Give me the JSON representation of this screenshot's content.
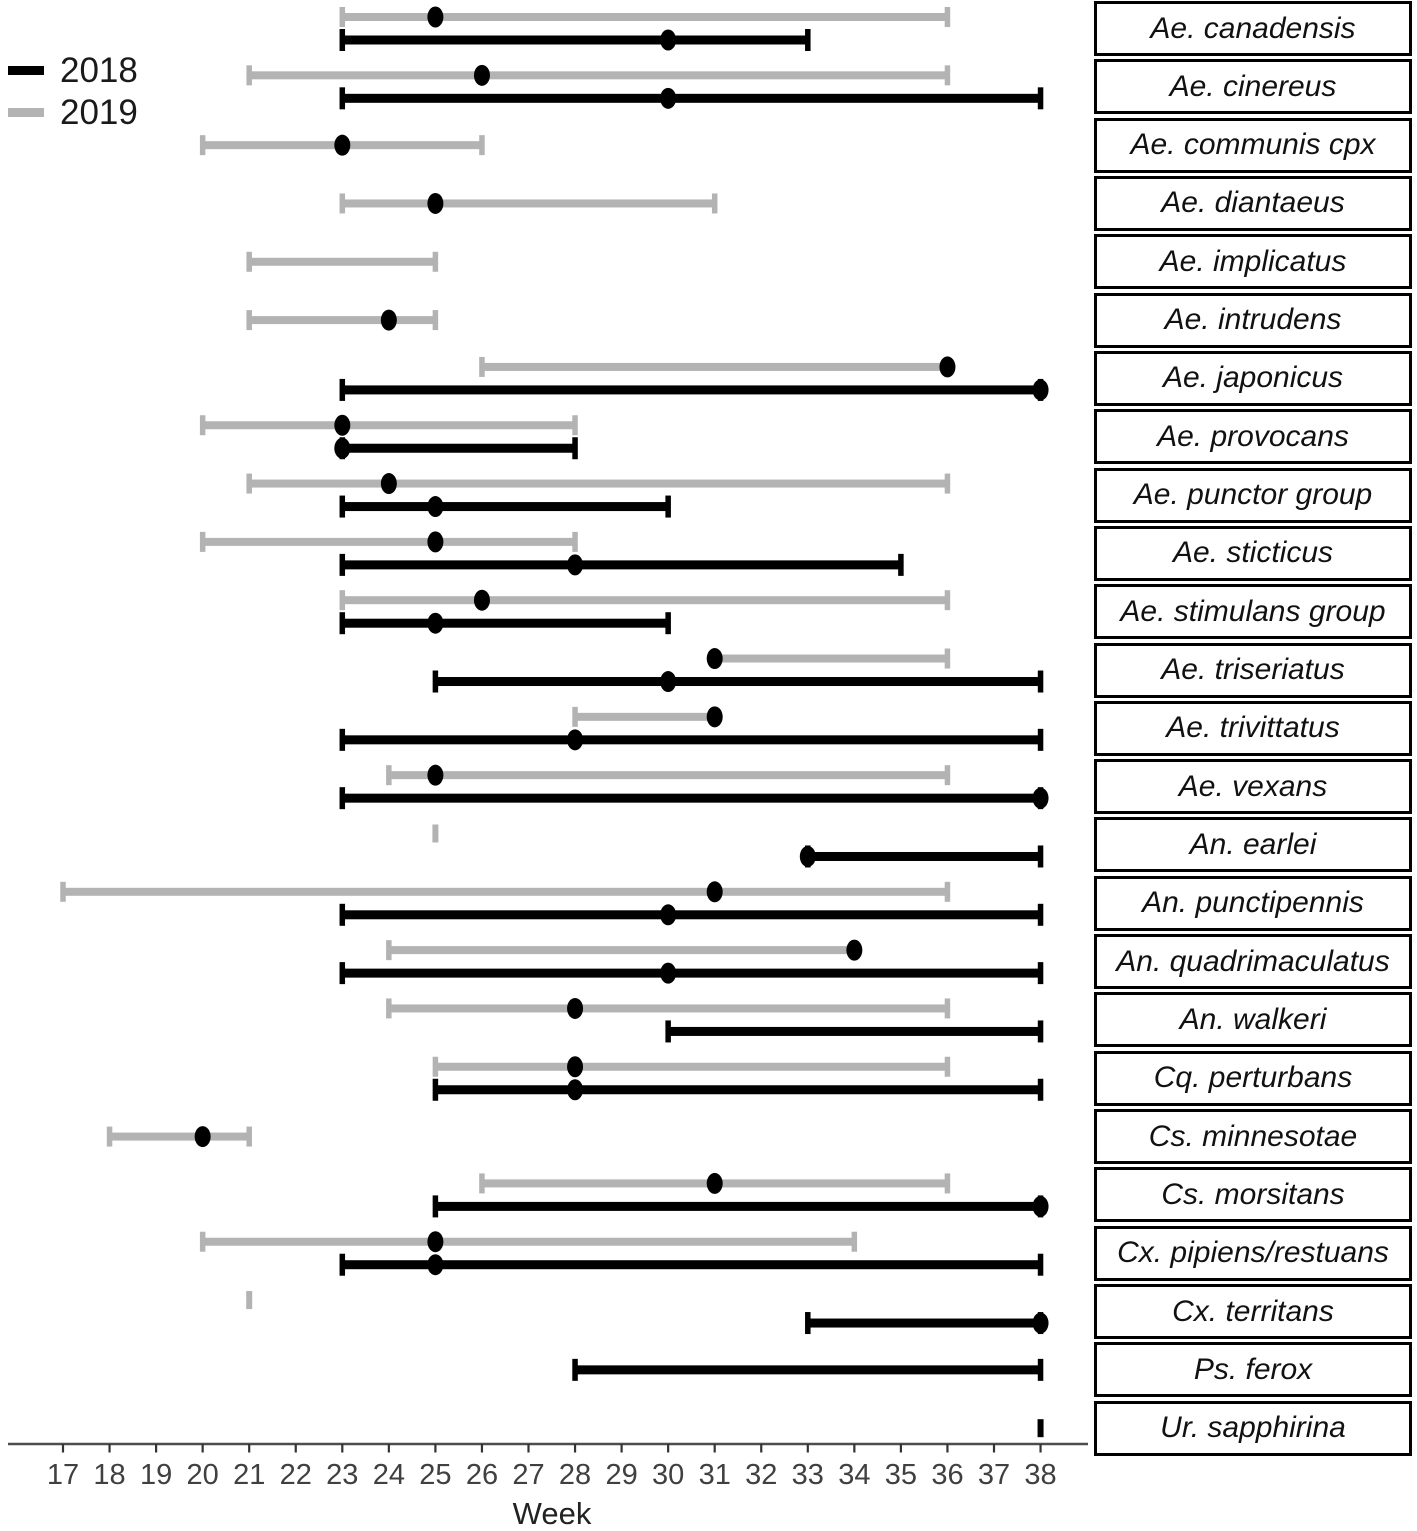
{
  "legend": {
    "items": [
      {
        "label": "2018",
        "color": "#000000"
      },
      {
        "label": "2019",
        "color": "#b3b3b3"
      }
    ]
  },
  "x_axis": {
    "label": "Week",
    "ticks": [
      17,
      18,
      19,
      20,
      21,
      22,
      23,
      24,
      25,
      26,
      27,
      28,
      29,
      30,
      31,
      32,
      33,
      34,
      35,
      36,
      37,
      38
    ]
  },
  "colors": {
    "year2018": "#000000",
    "year2019": "#b3b3b3",
    "peak_dot": "#000000",
    "axis_line": "#4d4d4d",
    "tick_text": "#404040"
  },
  "chart_data": {
    "type": "range",
    "description": "Weekly activity ranges per mosquito species; bar = start-to-end week, dot = peak week",
    "xlabel": "Week",
    "x_range": [
      17,
      38
    ],
    "x_ticks": [
      17,
      18,
      19,
      20,
      21,
      22,
      23,
      24,
      25,
      26,
      27,
      28,
      29,
      30,
      31,
      32,
      33,
      34,
      35,
      36,
      37,
      38
    ],
    "grid": false,
    "legend_position": "top-left",
    "series": [
      {
        "name": "2018",
        "color": "#000000"
      },
      {
        "name": "2019",
        "color": "#b3b3b3"
      }
    ],
    "species": [
      {
        "name": "Ae. canadensis",
        "y2019": {
          "start": 23,
          "end": 36,
          "peak": 25
        },
        "y2018": {
          "start": 23,
          "end": 33,
          "peak": 30
        }
      },
      {
        "name": "Ae. cinereus",
        "y2019": {
          "start": 21,
          "end": 36,
          "peak": 26
        },
        "y2018": {
          "start": 23,
          "end": 38,
          "peak": 30
        }
      },
      {
        "name": "Ae. communis cpx",
        "y2019": {
          "start": 20,
          "end": 26,
          "peak": 23
        },
        "y2018": null
      },
      {
        "name": "Ae. diantaeus",
        "y2019": {
          "start": 23,
          "end": 31,
          "peak": 25
        },
        "y2018": null
      },
      {
        "name": "Ae. implicatus",
        "y2019": {
          "start": 21,
          "end": 25,
          "peak": null
        },
        "y2018": null
      },
      {
        "name": "Ae. intrudens",
        "y2019": {
          "start": 21,
          "end": 25,
          "peak": 24
        },
        "y2018": null
      },
      {
        "name": "Ae. japonicus",
        "y2019": {
          "start": 26,
          "end": 36,
          "peak": 36
        },
        "y2018": {
          "start": 23,
          "end": 38,
          "peak": 38
        }
      },
      {
        "name": "Ae. provocans",
        "y2019": {
          "start": 20,
          "end": 28,
          "peak": 23
        },
        "y2018": {
          "start": 23,
          "end": 28,
          "peak": 23
        }
      },
      {
        "name": "Ae. punctor group",
        "y2019": {
          "start": 21,
          "end": 36,
          "peak": 24
        },
        "y2018": {
          "start": 23,
          "end": 30,
          "peak": 25
        }
      },
      {
        "name": "Ae. sticticus",
        "y2019": {
          "start": 20,
          "end": 28,
          "peak": 25
        },
        "y2018": {
          "start": 23,
          "end": 35,
          "peak": 28
        }
      },
      {
        "name": "Ae. stimulans group",
        "y2019": {
          "start": 23,
          "end": 36,
          "peak": 26
        },
        "y2018": {
          "start": 23,
          "end": 30,
          "peak": 25
        }
      },
      {
        "name": "Ae. triseriatus",
        "y2019": {
          "start": 31,
          "end": 36,
          "peak": 31
        },
        "y2018": {
          "start": 25,
          "end": 38,
          "peak": 30
        }
      },
      {
        "name": "Ae. trivittatus",
        "y2019": {
          "start": 28,
          "end": 31,
          "peak": 31
        },
        "y2018": {
          "start": 23,
          "end": 38,
          "peak": 28
        }
      },
      {
        "name": "Ae. vexans",
        "y2019": {
          "start": 24,
          "end": 36,
          "peak": 25
        },
        "y2018": {
          "start": 23,
          "end": 38,
          "peak": 38
        }
      },
      {
        "name": "An. earlei",
        "y2019": {
          "start": 25,
          "end": 25,
          "peak": null
        },
        "y2018": {
          "start": 33,
          "end": 38,
          "peak": 33
        }
      },
      {
        "name": "An. punctipennis",
        "y2019": {
          "start": 17,
          "end": 36,
          "peak": 31
        },
        "y2018": {
          "start": 23,
          "end": 38,
          "peak": 30
        }
      },
      {
        "name": "An. quadrimaculatus",
        "y2019": {
          "start": 24,
          "end": 34,
          "peak": 34
        },
        "y2018": {
          "start": 23,
          "end": 38,
          "peak": 30
        }
      },
      {
        "name": "An. walkeri",
        "y2019": {
          "start": 24,
          "end": 36,
          "peak": 28
        },
        "y2018": {
          "start": 30,
          "end": 38,
          "peak": null
        }
      },
      {
        "name": "Cq. perturbans",
        "y2019": {
          "start": 25,
          "end": 36,
          "peak": 28
        },
        "y2018": {
          "start": 25,
          "end": 38,
          "peak": 28
        }
      },
      {
        "name": "Cs. minnesotae",
        "y2019": {
          "start": 18,
          "end": 21,
          "peak": 20
        },
        "y2018": null
      },
      {
        "name": "Cs. morsitans",
        "y2019": {
          "start": 26,
          "end": 36,
          "peak": 31
        },
        "y2018": {
          "start": 25,
          "end": 38,
          "peak": 38
        }
      },
      {
        "name": "Cx. pipiens/restuans",
        "y2019": {
          "start": 20,
          "end": 34,
          "peak": 25
        },
        "y2018": {
          "start": 23,
          "end": 38,
          "peak": 25
        }
      },
      {
        "name": "Cx. territans",
        "y2019": {
          "start": 21,
          "end": 21,
          "peak": null
        },
        "y2018": {
          "start": 33,
          "end": 38,
          "peak": 38
        }
      },
      {
        "name": "Ps. ferox",
        "y2019": null,
        "y2018": {
          "start": 28,
          "end": 38,
          "peak": null
        }
      },
      {
        "name": "Ur. sapphirina",
        "y2019": null,
        "y2018": {
          "start": 38,
          "end": 38,
          "peak": null
        }
      }
    ]
  }
}
